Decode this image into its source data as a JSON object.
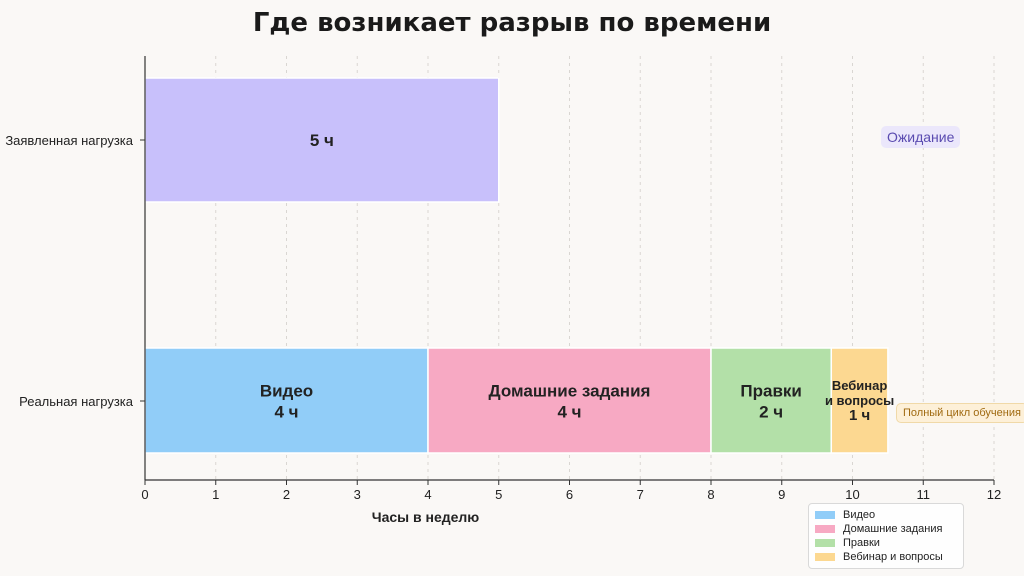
{
  "chart_data": {
    "type": "bar",
    "orientation": "horizontal",
    "stacked": true,
    "title": "Где возникает разрыв по времени",
    "xlabel": "Часы в неделю",
    "ylabel": "",
    "xlim": [
      0,
      12
    ],
    "xticks": [
      "0",
      "1",
      "2",
      "3",
      "4",
      "5",
      "6",
      "7",
      "8",
      "9",
      "10",
      "11",
      "12"
    ],
    "grid": "vertical-dashed",
    "legend_position": "bottom-right",
    "rows": [
      {
        "category": "Заявленная нагрузка",
        "segments": [
          {
            "start": 0,
            "value": 5,
            "label_lines": [
              "5 ч"
            ],
            "color": "#c8c0fb"
          }
        ]
      },
      {
        "category": "Реальная нагрузка",
        "segments": [
          {
            "start": 0,
            "value": 4,
            "label_lines": [
              "Видео",
              "4 ч"
            ],
            "color": "#91cdf8"
          },
          {
            "start": 4,
            "value": 4,
            "label_lines": [
              "Домашние задания",
              "4 ч"
            ],
            "color": "#f7a9c3"
          },
          {
            "start": 8,
            "value": 1.7,
            "label_lines": [
              "Правки",
              "2 ч"
            ],
            "color": "#b3e0a8"
          },
          {
            "start": 9.7,
            "value": 0.8,
            "label_lines": [
              "Вебинар",
              "и вопросы",
              "1 ч"
            ],
            "color": "#fcd891"
          }
        ]
      }
    ],
    "legend": [
      {
        "label": "Видео",
        "color": "#91cdf8"
      },
      {
        "label": "Домашние задания",
        "color": "#f7a9c3"
      },
      {
        "label": "Правки",
        "color": "#b3e0a8"
      },
      {
        "label": "Вебинар и вопросы",
        "color": "#fcd891"
      }
    ],
    "annotations": [
      {
        "text": "Ожидание",
        "near": "Заявленная нагрузка"
      },
      {
        "text": "Полный цикл обучения",
        "near": "Реальная нагрузка"
      }
    ]
  }
}
